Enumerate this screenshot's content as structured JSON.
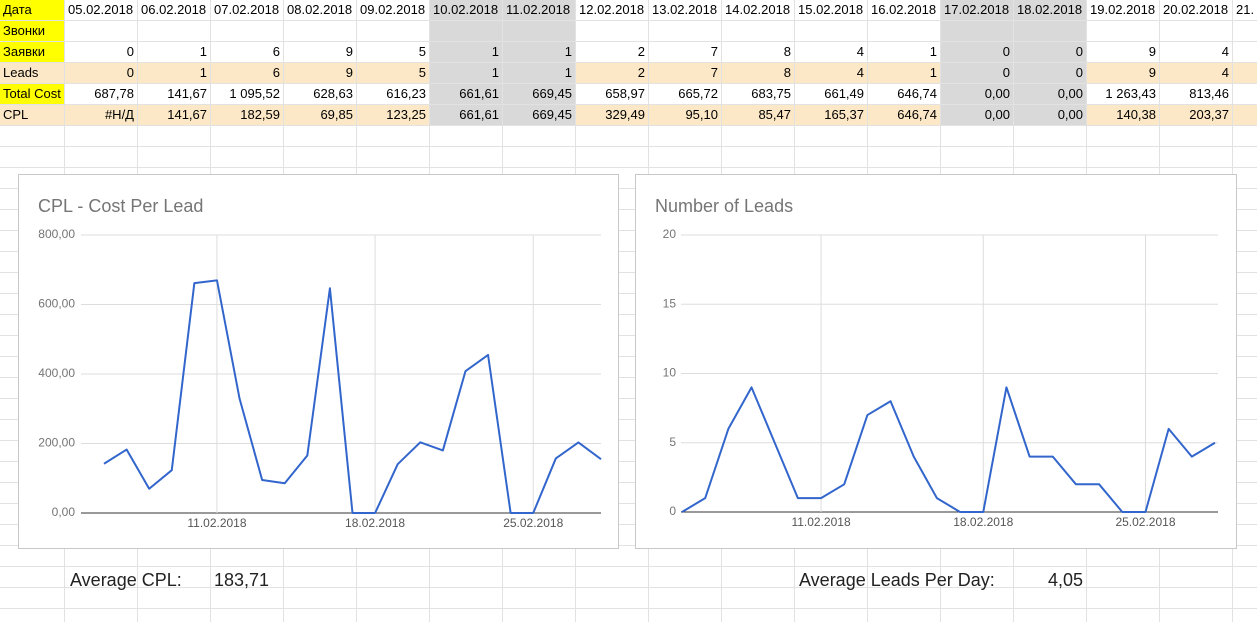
{
  "table": {
    "header": [
      "Дата",
      "05.02.2018",
      "06.02.2018",
      "07.02.2018",
      "08.02.2018",
      "09.02.2018",
      "10.02.2018",
      "11.02.2018",
      "12.02.2018",
      "13.02.2018",
      "14.02.2018",
      "15.02.2018",
      "16.02.2018",
      "17.02.2018",
      "18.02.2018",
      "19.02.2018",
      "20.02.2018",
      "21."
    ],
    "rows": [
      {
        "label": "Звонки"
      },
      {
        "label": "Заявки",
        "cells": [
          "0",
          "1",
          "6",
          "9",
          "5",
          "1",
          "1",
          "2",
          "7",
          "8",
          "4",
          "1",
          "0",
          "0",
          "9",
          "4"
        ]
      },
      {
        "label": "Leads",
        "cells": [
          "0",
          "1",
          "6",
          "9",
          "5",
          "1",
          "1",
          "2",
          "7",
          "8",
          "4",
          "1",
          "0",
          "0",
          "9",
          "4"
        ]
      },
      {
        "label": "Total Cost",
        "cells": [
          "687,78",
          "141,67",
          "1 095,52",
          "628,63",
          "616,23",
          "661,61",
          "669,45",
          "658,97",
          "665,72",
          "683,75",
          "661,49",
          "646,74",
          "0,00",
          "0,00",
          "1 263,43",
          "813,46"
        ]
      },
      {
        "label": "CPL",
        "cells": [
          "#Н/Д",
          "141,67",
          "182,59",
          "69,85",
          "123,25",
          "661,61",
          "669,45",
          "329,49",
          "95,10",
          "85,47",
          "165,37",
          "646,74",
          "0,00",
          "0,00",
          "140,38",
          "203,37"
        ]
      }
    ]
  },
  "chart_data": [
    {
      "type": "line",
      "title": "CPL - Cost Per Lead",
      "categories": [
        null,
        null,
        null,
        null,
        null,
        "11.02.2018",
        null,
        null,
        null,
        null,
        null,
        null,
        "18.02.2018",
        null,
        null,
        null,
        null,
        null,
        null,
        "25.02.2018",
        null,
        null,
        null
      ],
      "series": [
        {
          "color": "#3366cc",
          "values": [
            141.67,
            182.59,
            69.85,
            123.25,
            661.61,
            669.45,
            329.49,
            95.1,
            85.47,
            165.37,
            646.74,
            0,
            0,
            140.38,
            203.37,
            180,
            408,
            455,
            0,
            0,
            157,
            203,
            155
          ]
        }
      ],
      "ylim": [
        0,
        800
      ],
      "yticks": [
        {
          "value": 0,
          "label": "0,00"
        },
        {
          "value": 200,
          "label": "200,00"
        },
        {
          "value": 400,
          "label": "400,00"
        },
        {
          "value": 600,
          "label": "600,00"
        },
        {
          "value": 800,
          "label": "800,00"
        }
      ],
      "grid": true
    },
    {
      "type": "line",
      "title": "Number of Leads",
      "categories": [
        null,
        null,
        null,
        null,
        null,
        null,
        "11.02.2018",
        null,
        null,
        null,
        null,
        null,
        null,
        "18.02.2018",
        null,
        null,
        null,
        null,
        null,
        null,
        "25.02.2018",
        null,
        null,
        null
      ],
      "series": [
        {
          "color": "#3366cc",
          "values": [
            0,
            1,
            6,
            9,
            5,
            1,
            1,
            2,
            7,
            8,
            4,
            1,
            0,
            0,
            9,
            4,
            4,
            2,
            2,
            0,
            0,
            6,
            4,
            5
          ]
        }
      ],
      "ylim": [
        0,
        20
      ],
      "yticks": [
        0,
        5,
        10,
        15,
        20
      ],
      "grid": true
    }
  ],
  "summary": [
    {
      "label": "Average CPL:",
      "value": "183,71"
    },
    {
      "label": "Average Leads Per Day:",
      "value": "4,05"
    }
  ]
}
